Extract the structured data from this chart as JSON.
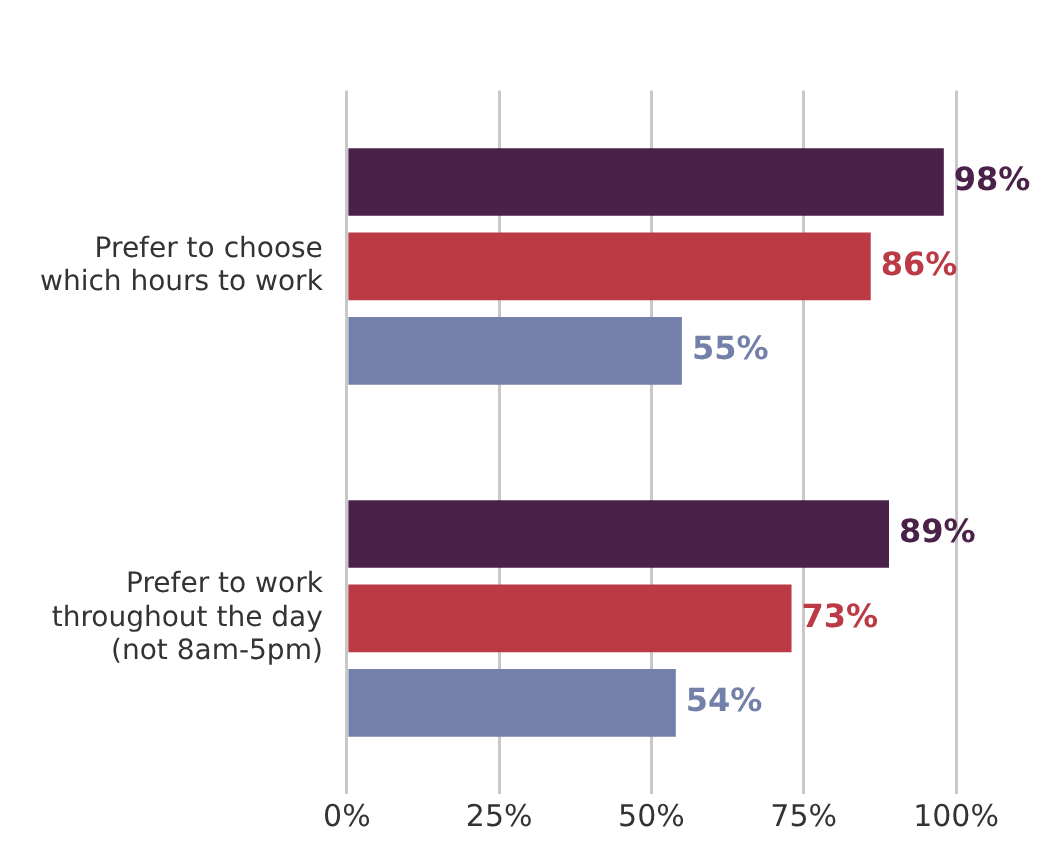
{
  "chart_data": {
    "type": "bar",
    "orientation": "horizontal",
    "categories": [
      "Prefer to choose which hours to work",
      "Prefer to work throughout the day (not 8am-5pm)"
    ],
    "series": [
      {
        "color": "#4a2249",
        "values": [
          98,
          89
        ],
        "value_labels": [
          "98%",
          "89%"
        ]
      },
      {
        "color": "#bb3a45",
        "values": [
          86,
          73
        ],
        "value_labels": [
          "86%",
          "73%"
        ]
      },
      {
        "color": "#7380a9",
        "values": [
          55,
          54
        ],
        "value_labels": [
          "55%",
          "54%"
        ]
      }
    ],
    "xlim": [
      0,
      100
    ],
    "xticks": [
      {
        "value": 0,
        "label": "0%"
      },
      {
        "value": 25,
        "label": "25%"
      },
      {
        "value": 50,
        "label": "50%"
      },
      {
        "value": 75,
        "label": "75%"
      },
      {
        "value": 100,
        "label": "100%"
      }
    ],
    "grid": "x",
    "legend": false
  }
}
